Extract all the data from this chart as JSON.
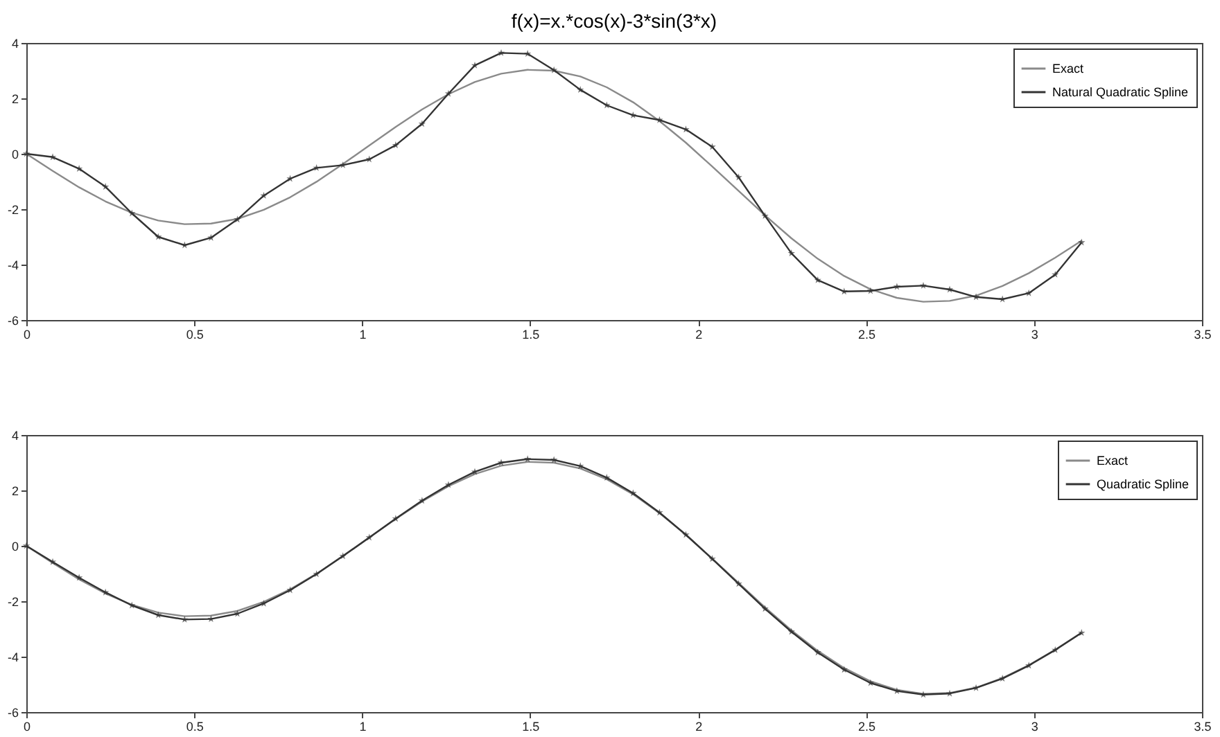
{
  "chart_data": [
    {
      "type": "line",
      "title": "f(x)=x.*cos(x)-3*sin(3*x)",
      "x": [
        0,
        0.0785,
        0.1571,
        0.2356,
        0.3142,
        0.3927,
        0.4712,
        0.5498,
        0.6283,
        0.7069,
        0.7854,
        0.8639,
        0.9425,
        1.021,
        1.0996,
        1.1781,
        1.2566,
        1.3352,
        1.4137,
        1.4923,
        1.5708,
        1.6493,
        1.7279,
        1.8064,
        1.885,
        1.9635,
        2.042,
        2.1206,
        2.1991,
        2.2777,
        2.3562,
        2.4347,
        2.5133,
        2.5918,
        2.6704,
        2.7489,
        2.8274,
        2.906,
        2.9845,
        3.0631,
        3.1416
      ],
      "series": [
        {
          "name": "Exact",
          "color": "#8a8a8a",
          "marker": "none",
          "values": [
            0,
            -0.62,
            -1.21,
            -1.72,
            -2.13,
            -2.41,
            -2.54,
            -2.52,
            -2.35,
            -2.02,
            -1.57,
            -1.01,
            -0.37,
            0.3,
            0.97,
            1.6,
            2.15,
            2.59,
            2.89,
            3.03,
            3.0,
            2.79,
            2.4,
            1.86,
            1.18,
            0.4,
            -0.46,
            -1.34,
            -2.22,
            -3.05,
            -3.79,
            -4.41,
            -4.89,
            -5.2,
            -5.34,
            -5.31,
            -5.12,
            -4.77,
            -4.31,
            -3.75,
            -3.14
          ]
        },
        {
          "name": "Natural Quadratic Spline",
          "color": "#333333",
          "marker": "star",
          "values": [
            0,
            -0.12,
            -0.54,
            -1.19,
            -2.15,
            -3.0,
            -3.3,
            -3.03,
            -2.37,
            -1.51,
            -0.9,
            -0.51,
            -0.41,
            -0.2,
            0.31,
            1.08,
            2.17,
            3.19,
            3.64,
            3.61,
            3.02,
            2.31,
            1.75,
            1.39,
            1.22,
            0.88,
            0.25,
            -0.85,
            -2.24,
            -3.59,
            -4.56,
            -4.97,
            -4.95,
            -4.8,
            -4.76,
            -4.9,
            -5.17,
            -5.25,
            -5.03,
            -4.36,
            -3.2
          ]
        }
      ],
      "xlim": [
        0,
        3.5
      ],
      "xticks": [
        0,
        0.5,
        1,
        1.5,
        2,
        2.5,
        3,
        3.5
      ],
      "ylim": [
        -6,
        4
      ],
      "yticks": [
        -6,
        -4,
        -2,
        0,
        2,
        4
      ],
      "grid": false,
      "legend": "top right",
      "line_style": "solid"
    },
    {
      "type": "line",
      "x": [
        0,
        0.0785,
        0.1571,
        0.2356,
        0.3142,
        0.3927,
        0.4712,
        0.5498,
        0.6283,
        0.7069,
        0.7854,
        0.8639,
        0.9425,
        1.021,
        1.0996,
        1.1781,
        1.2566,
        1.3352,
        1.4137,
        1.4923,
        1.5708,
        1.6493,
        1.7279,
        1.8064,
        1.885,
        1.9635,
        2.042,
        2.1206,
        2.1991,
        2.2777,
        2.3562,
        2.4347,
        2.5133,
        2.5918,
        2.6704,
        2.7489,
        2.8274,
        2.906,
        2.9845,
        3.0631,
        3.1416
      ],
      "series": [
        {
          "name": "Exact",
          "color": "#8a8a8a",
          "marker": "none",
          "values": [
            0,
            -0.62,
            -1.21,
            -1.72,
            -2.13,
            -2.41,
            -2.54,
            -2.52,
            -2.35,
            -2.02,
            -1.57,
            -1.01,
            -0.37,
            0.3,
            0.97,
            1.6,
            2.15,
            2.59,
            2.89,
            3.03,
            3.0,
            2.79,
            2.4,
            1.86,
            1.18,
            0.4,
            -0.46,
            -1.34,
            -2.22,
            -3.05,
            -3.79,
            -4.41,
            -4.89,
            -5.2,
            -5.34,
            -5.31,
            -5.12,
            -4.77,
            -4.31,
            -3.75,
            -3.14
          ]
        },
        {
          "name": "Quadratic Spline",
          "color": "#333333",
          "marker": "star",
          "values": [
            0,
            -0.58,
            -1.15,
            -1.68,
            -2.15,
            -2.5,
            -2.66,
            -2.64,
            -2.45,
            -2.08,
            -1.6,
            -1.02,
            -0.37,
            0.3,
            0.98,
            1.63,
            2.2,
            2.67,
            3.0,
            3.13,
            3.1,
            2.88,
            2.46,
            1.9,
            1.2,
            0.4,
            -0.47,
            -1.37,
            -2.27,
            -3.1,
            -3.85,
            -4.47,
            -4.95,
            -5.24,
            -5.37,
            -5.33,
            -5.13,
            -4.79,
            -4.32,
            -3.76,
            -3.14
          ]
        }
      ],
      "xlim": [
        0,
        3.5
      ],
      "xticks": [
        0,
        0.5,
        1,
        1.5,
        2,
        2.5,
        3,
        3.5
      ],
      "ylim": [
        -6,
        4
      ],
      "yticks": [
        -6,
        -4,
        -2,
        0,
        2,
        4
      ],
      "grid": false,
      "legend": "top right",
      "line_style": "solid"
    }
  ]
}
